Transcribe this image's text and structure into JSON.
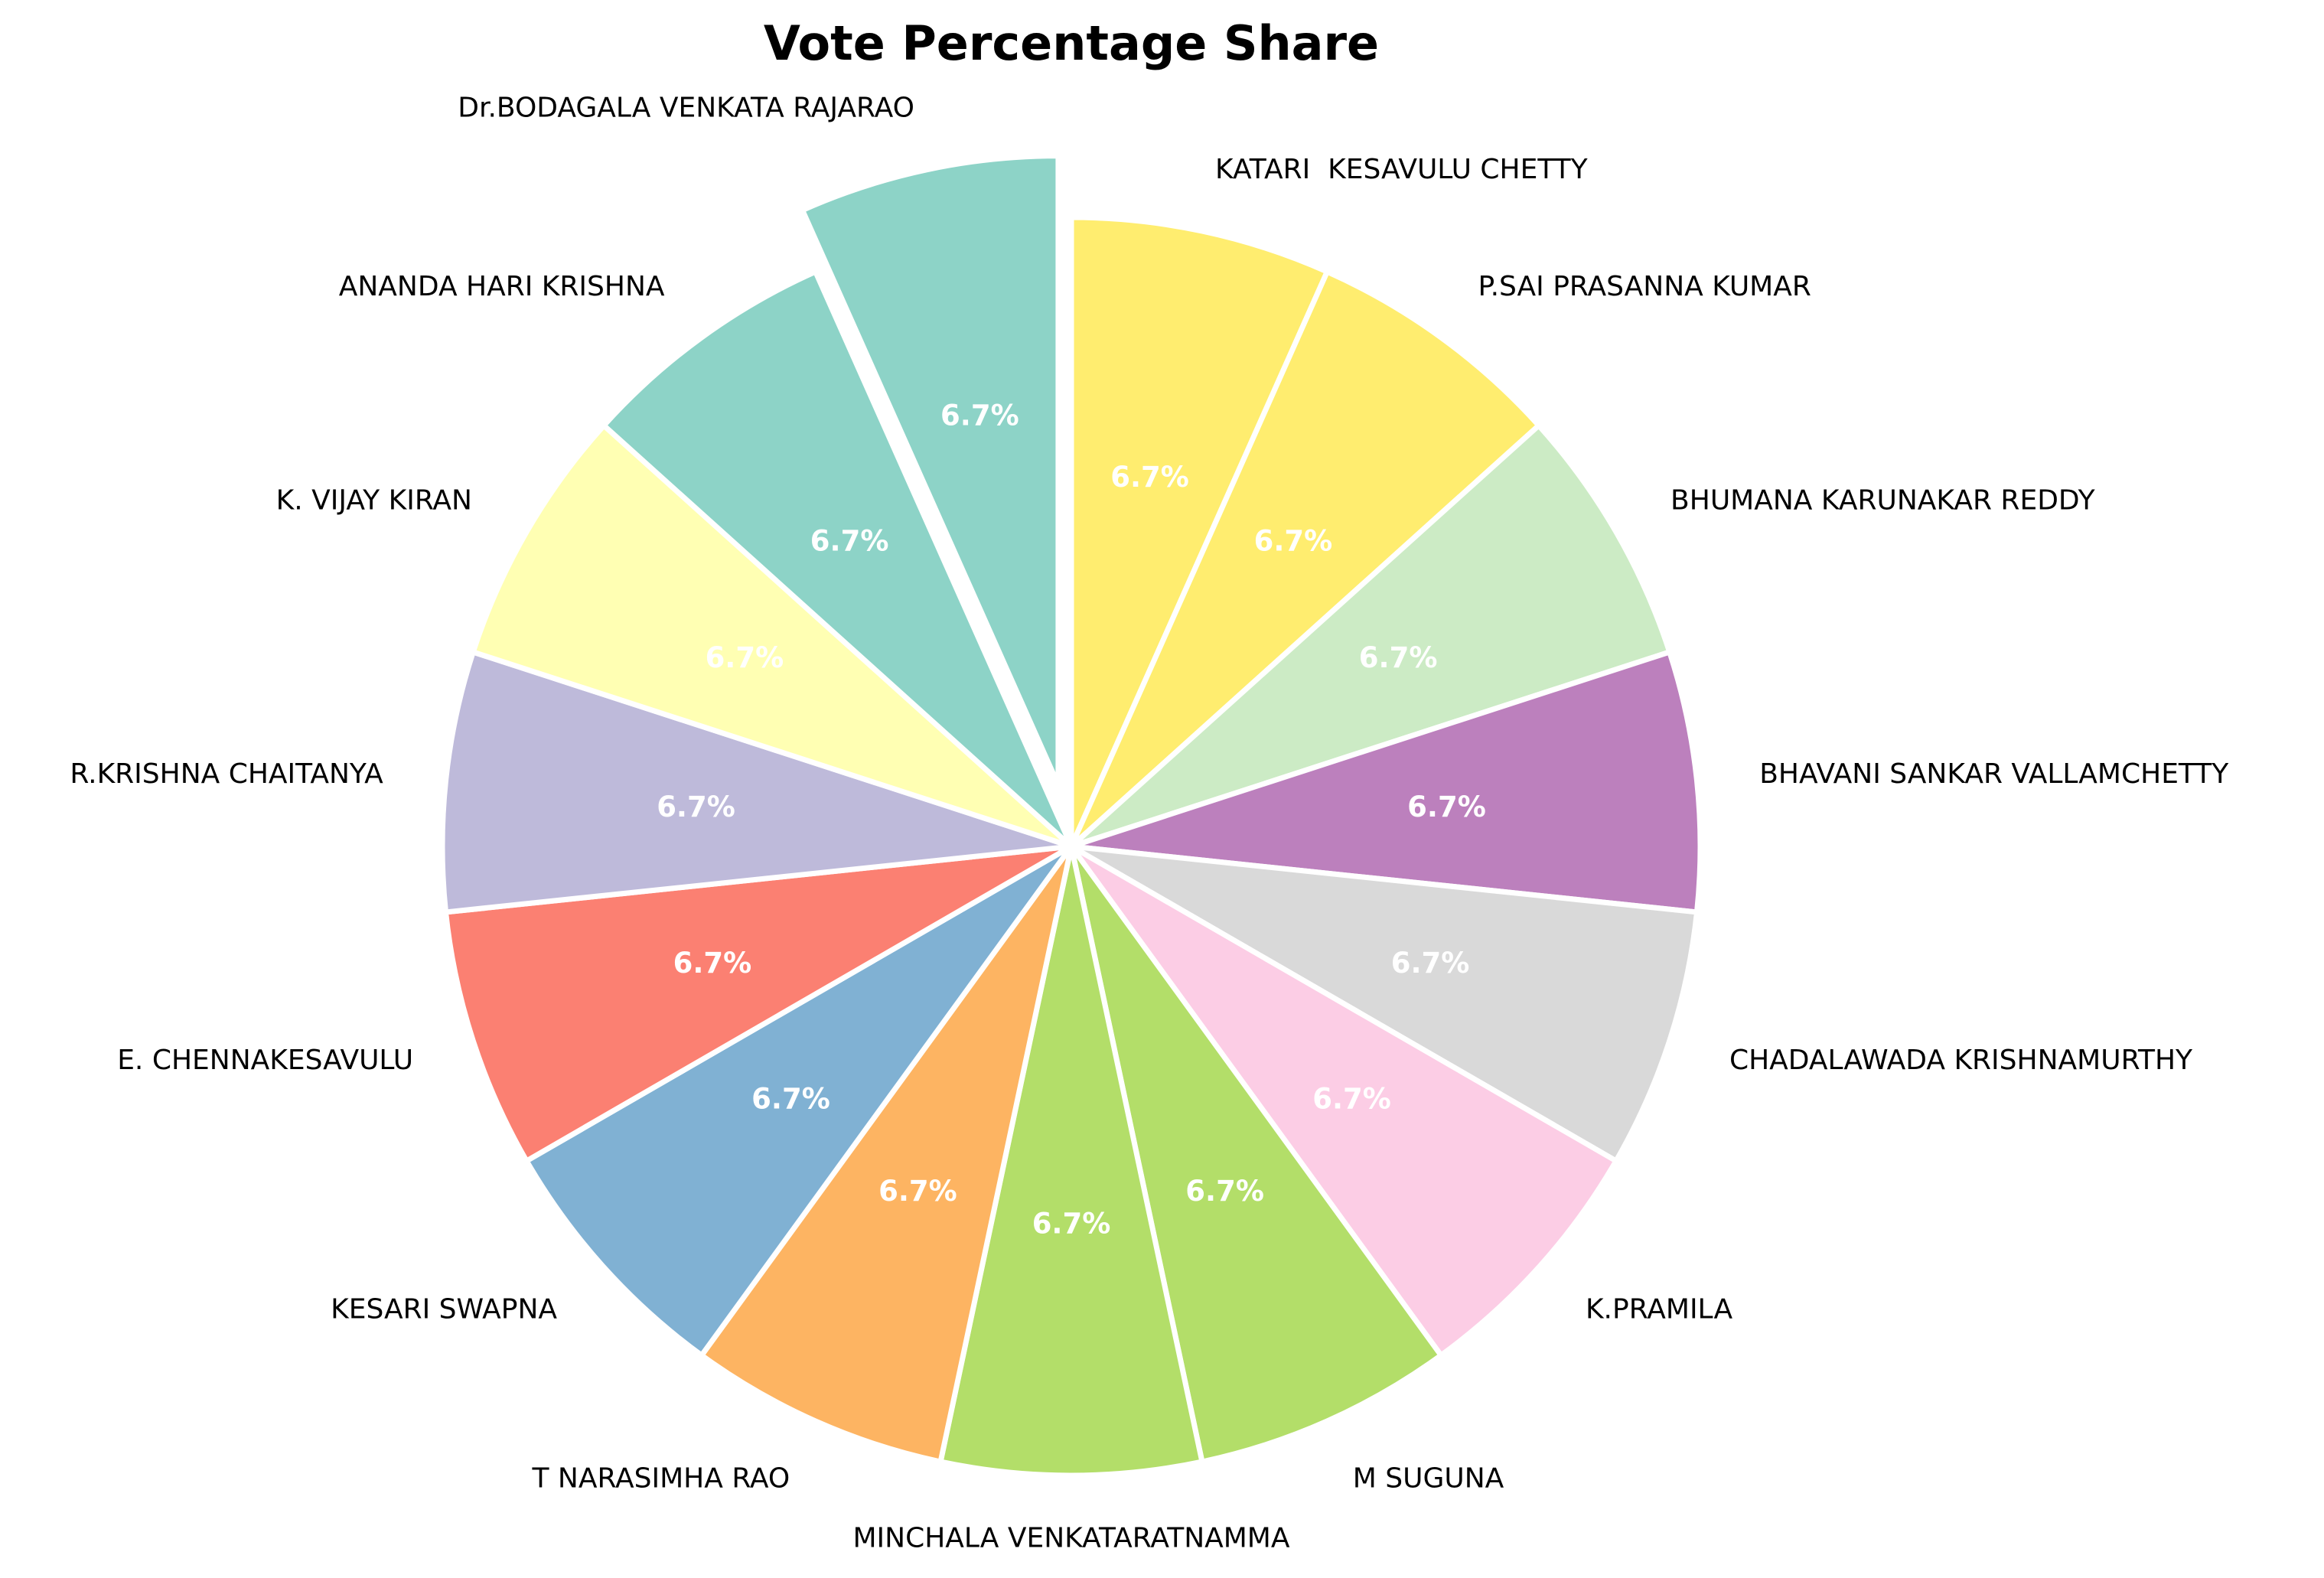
{
  "chart_data": {
    "type": "pie",
    "title": "Vote Percentage Share",
    "start_angle_deg": 90,
    "direction": "clockwise",
    "legend": "none",
    "slices": [
      {
        "label": "KATARI  KESAVULU CHETTY",
        "value": 6.7,
        "pct_label": "6.7%",
        "color": "#ffed6f",
        "explode": 0
      },
      {
        "label": "P.SAI PRASANNA KUMAR",
        "value": 6.7,
        "pct_label": "6.7%",
        "color": "#ffed6f",
        "explode": 0
      },
      {
        "label": "BHUMANA KARUNAKAR REDDY",
        "value": 6.7,
        "pct_label": "6.7%",
        "color": "#ccebc5",
        "explode": 0
      },
      {
        "label": "BHAVANI SANKAR VALLAMCHETTY",
        "value": 6.7,
        "pct_label": "6.7%",
        "color": "#bc80bd",
        "explode": 0
      },
      {
        "label": "CHADALAWADA KRISHNAMURTHY",
        "value": 6.7,
        "pct_label": "6.7%",
        "color": "#d9d9d9",
        "explode": 0
      },
      {
        "label": "K.PRAMILA",
        "value": 6.7,
        "pct_label": "6.7%",
        "color": "#fccde5",
        "explode": 0
      },
      {
        "label": "M SUGUNA",
        "value": 6.7,
        "pct_label": "6.7%",
        "color": "#b3de69",
        "explode": 0
      },
      {
        "label": "MINCHALA VENKATARATNAMMA",
        "value": 6.7,
        "pct_label": "6.7%",
        "color": "#b3de69",
        "explode": 0
      },
      {
        "label": "T NARASIMHA RAO",
        "value": 6.7,
        "pct_label": "6.7%",
        "color": "#fdb462",
        "explode": 0
      },
      {
        "label": "KESARI SWAPNA",
        "value": 6.7,
        "pct_label": "6.7%",
        "color": "#80b1d3",
        "explode": 0
      },
      {
        "label": "E. CHENNAKESAVULU",
        "value": 6.7,
        "pct_label": "6.7%",
        "color": "#fb8072",
        "explode": 0
      },
      {
        "label": "R.KRISHNA CHAITANYA",
        "value": 6.7,
        "pct_label": "6.7%",
        "color": "#bebada",
        "explode": 0
      },
      {
        "label": "K. VIJAY KIRAN",
        "value": 6.7,
        "pct_label": "6.7%",
        "color": "#ffffb3",
        "explode": 0
      },
      {
        "label": "ANANDA HARI KRISHNA",
        "value": 6.7,
        "pct_label": "6.7%",
        "color": "#8dd3c7",
        "explode": 0
      },
      {
        "label": "Dr.BODAGALA VENKATA RAJARAO",
        "value": 6.7,
        "pct_label": "6.7%",
        "color": "#8dd3c7",
        "explode": 0.1
      }
    ]
  }
}
